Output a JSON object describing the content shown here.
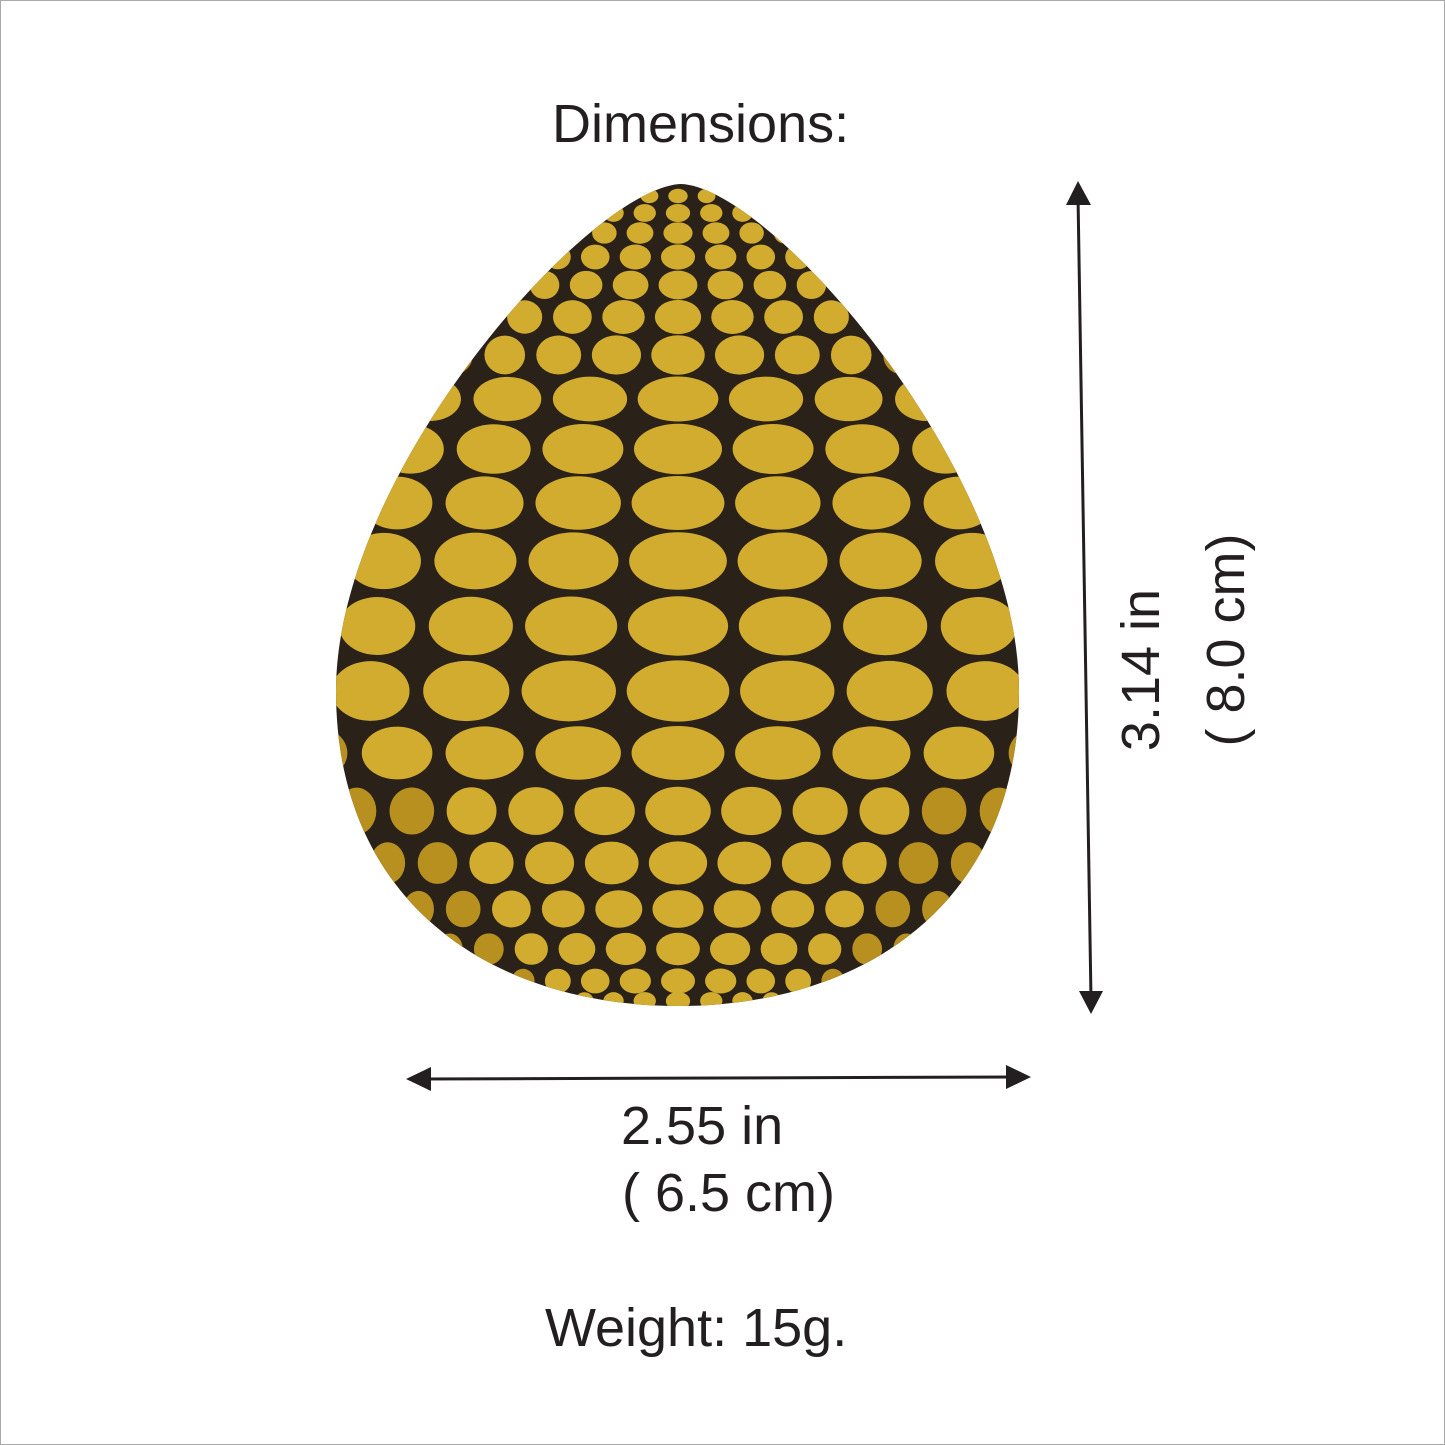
{
  "title": "Dimensions:",
  "height": {
    "imperial": "3.14 in",
    "metric": "( 8.0 cm)"
  },
  "width": {
    "imperial": "2.55 in",
    "metric": "( 6.5 cm)"
  },
  "weight": "Weight: 15g.",
  "colors": {
    "text": "#231f20",
    "gold": "#c9a227",
    "body": "#2a2118",
    "border": "#a9a9a9"
  }
}
